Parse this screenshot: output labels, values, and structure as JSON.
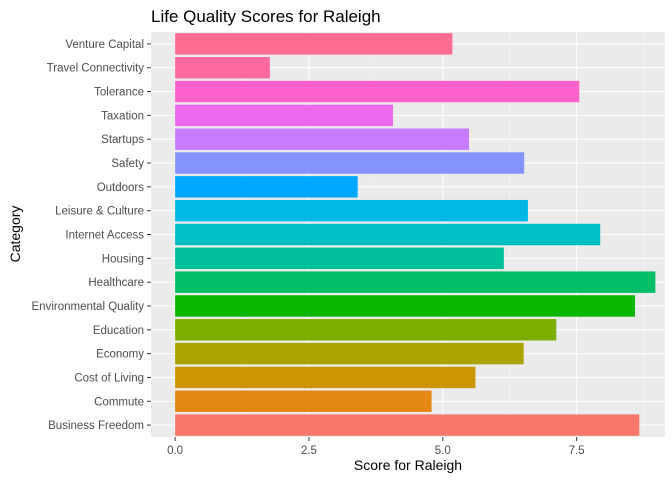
{
  "chart_data": {
    "type": "bar",
    "orientation": "horizontal",
    "title": "Life Quality Scores for Raleigh",
    "xlabel": "Score for Raleigh",
    "ylabel": "Category",
    "xlim": [
      -0.45,
      9.15
    ],
    "xticks": [
      0,
      2.5,
      5,
      7.5
    ],
    "xtick_labels": [
      "0.0",
      "2.5",
      "5.0",
      "7.5"
    ],
    "grid": true,
    "legend": "none",
    "categories": [
      "Business Freedom",
      "Commute",
      "Cost of Living",
      "Economy",
      "Education",
      "Environmental Quality",
      "Healthcare",
      "Housing",
      "Internet Access",
      "Leisure & Culture",
      "Outdoors",
      "Safety",
      "Startups",
      "Taxation",
      "Tolerance",
      "Travel Connectivity",
      "Venture Capital"
    ],
    "values": [
      8.67,
      4.79,
      5.61,
      6.51,
      7.12,
      8.59,
      8.97,
      6.14,
      7.94,
      6.59,
      3.41,
      6.52,
      5.49,
      4.07,
      7.55,
      1.77,
      5.18
    ],
    "colors": [
      "#F8766D",
      "#E68613",
      "#CD9600",
      "#ABA300",
      "#7CAE00",
      "#0CB702",
      "#00BE67",
      "#00C19A",
      "#00BFC4",
      "#00B8E7",
      "#00A9FF",
      "#8494FF",
      "#C77CFF",
      "#ED68ED",
      "#FF61CC",
      "#FF68A1",
      "#FF6C91"
    ]
  }
}
